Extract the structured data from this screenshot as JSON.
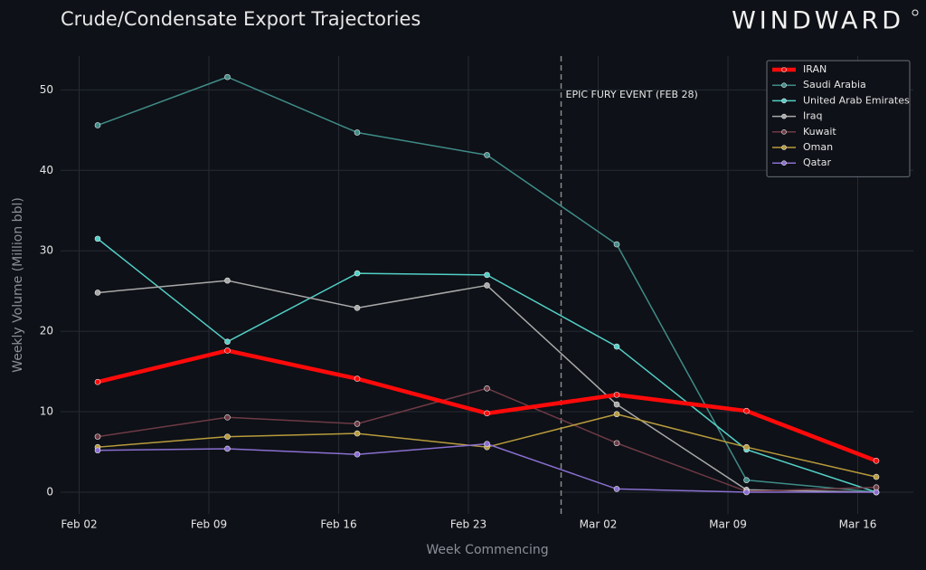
{
  "brand": "WINDWARD",
  "chart_data": {
    "type": "line",
    "title": "Crude/Condensate Export Trajectories",
    "x_label": "Week Commencing",
    "y_label": "Weekly Volume (Million bbl)",
    "x": [
      "Feb 03",
      "Feb 10",
      "Feb 17",
      "Feb 24",
      "Mar 03",
      "Mar 10",
      "Mar 17"
    ],
    "xlim": [
      "Feb 01",
      "Mar 19"
    ],
    "xticks": [
      "Feb 02",
      "Feb 09",
      "Feb 16",
      "Feb 23",
      "Mar 02",
      "Mar 09",
      "Mar 16"
    ],
    "ylim": [
      -2.7,
      54.2
    ],
    "yticks": [
      0,
      10,
      20,
      30,
      40,
      50
    ],
    "grid": true,
    "legend": "upper right",
    "annotation": {
      "x": "Feb 28",
      "label": "EPIC FURY EVENT (FEB 28)"
    },
    "series": [
      {
        "name": "IRAN",
        "color": "#ff0a0a",
        "linewidth": 4.5,
        "values": [
          13.7,
          17.6,
          14.1,
          9.8,
          12.1,
          10.1,
          3.9
        ]
      },
      {
        "name": "Saudi Arabia",
        "color": "#3f8c88",
        "linewidth": 1.5,
        "values": [
          45.6,
          51.6,
          44.7,
          41.9,
          30.8,
          1.5,
          0
        ]
      },
      {
        "name": "United Arab Emirates",
        "color": "#52cfc6",
        "linewidth": 1.5,
        "values": [
          31.5,
          18.7,
          27.2,
          27.0,
          18.1,
          5.3,
          0
        ]
      },
      {
        "name": "Iraq",
        "color": "#a9a9a9",
        "linewidth": 1.5,
        "values": [
          24.8,
          26.3,
          22.9,
          25.7,
          10.9,
          0.3,
          0
        ]
      },
      {
        "name": "Kuwait",
        "color": "#6e3a45",
        "linewidth": 1.5,
        "values": [
          6.9,
          9.3,
          8.5,
          12.9,
          6.1,
          0.1,
          0.6
        ]
      },
      {
        "name": "Oman",
        "color": "#b89b3c",
        "linewidth": 1.5,
        "values": [
          5.6,
          6.9,
          7.3,
          5.6,
          9.7,
          5.6,
          1.9
        ]
      },
      {
        "name": "Qatar",
        "color": "#8a6fd1",
        "linewidth": 1.5,
        "values": [
          5.2,
          5.4,
          4.7,
          6.0,
          0.4,
          0,
          0
        ]
      }
    ]
  }
}
